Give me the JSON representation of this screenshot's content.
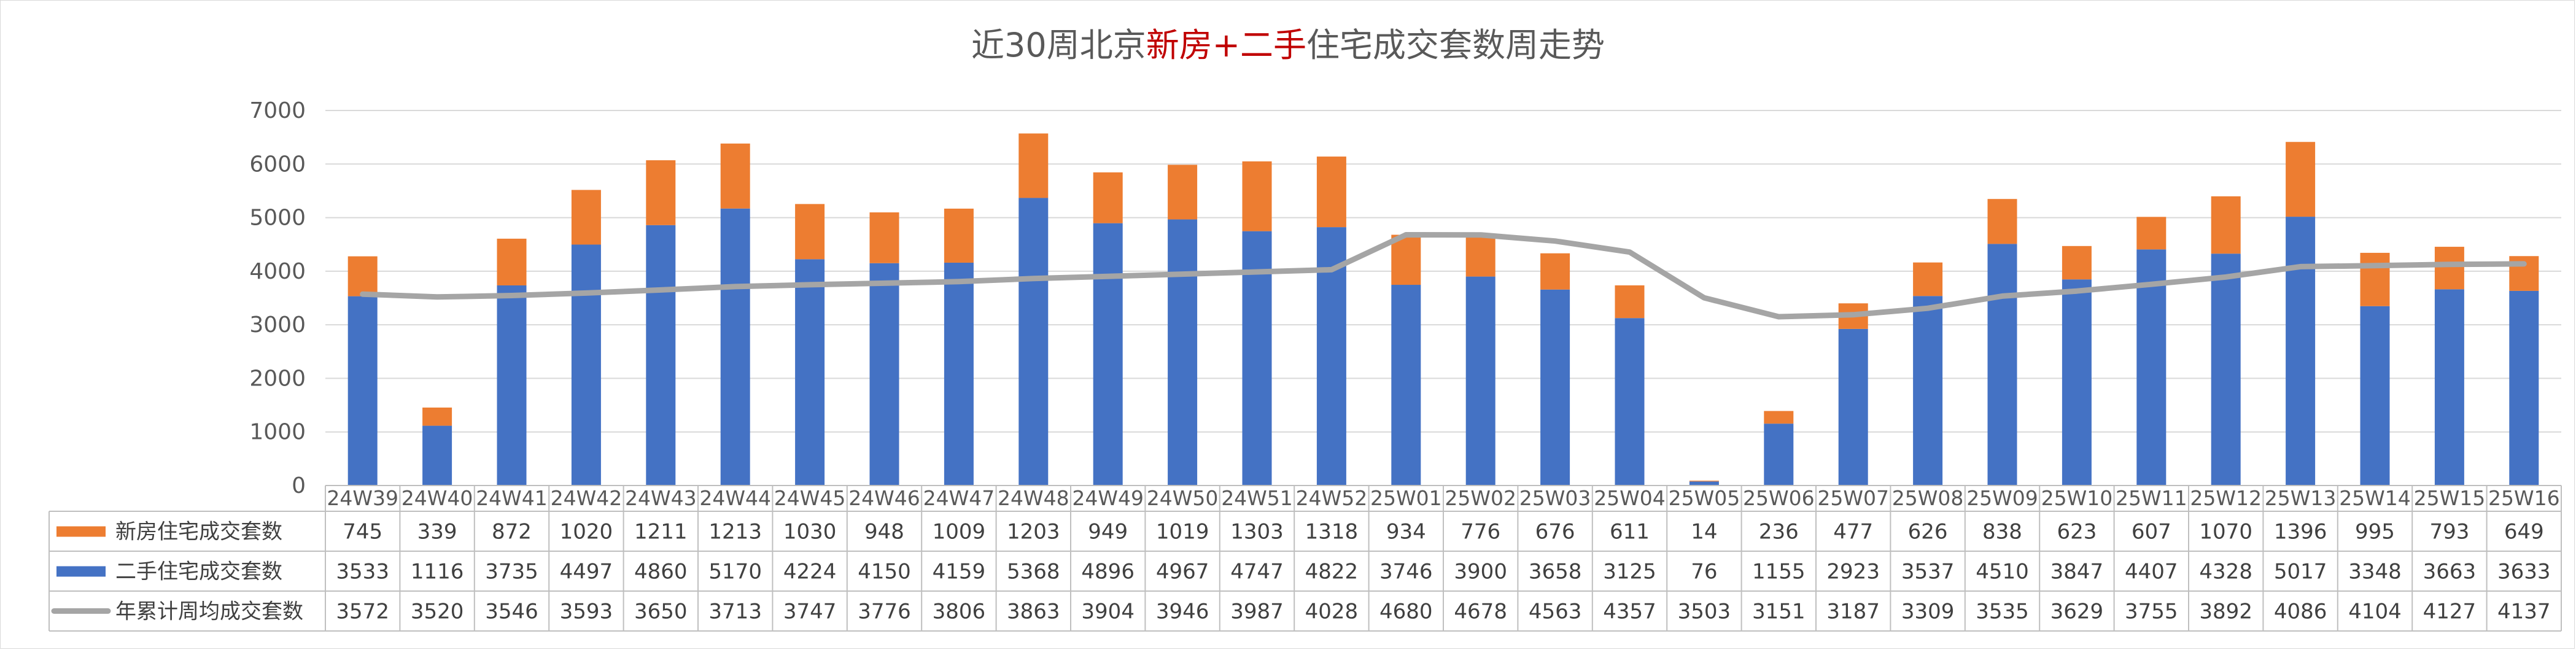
{
  "title": {
    "part1": "近30周北京",
    "part2": "新房+二手",
    "part3": "住宅成交套数周走势",
    "accent_color": "#c00000",
    "color": "#595959"
  },
  "colors": {
    "new_house": "#ed7d31",
    "second_hand": "#4472c4",
    "cumulative_avg": "#a5a5a5"
  },
  "chart_data": {
    "type": "bar",
    "stacked": true,
    "categories": [
      "24W39",
      "24W40",
      "24W41",
      "24W42",
      "24W43",
      "24W44",
      "24W45",
      "24W46",
      "24W47",
      "24W48",
      "24W49",
      "24W50",
      "24W51",
      "24W52",
      "25W01",
      "25W02",
      "25W03",
      "25W04",
      "25W05",
      "25W06",
      "25W07",
      "25W08",
      "25W09",
      "25W10",
      "25W11",
      "25W12",
      "25W13",
      "25W14",
      "25W15",
      "25W16"
    ],
    "series": [
      {
        "name": "新房住宅成交套数",
        "kind": "bar",
        "values": [
          745,
          339,
          872,
          1020,
          1211,
          1213,
          1030,
          948,
          1009,
          1203,
          949,
          1019,
          1303,
          1318,
          934,
          776,
          676,
          611,
          14,
          236,
          477,
          626,
          838,
          623,
          607,
          1070,
          1396,
          995,
          793,
          649
        ]
      },
      {
        "name": "二手住宅成交套数",
        "kind": "bar",
        "values": [
          3533,
          1116,
          3735,
          4497,
          4860,
          5170,
          4224,
          4150,
          4159,
          5368,
          4896,
          4967,
          4747,
          4822,
          3746,
          3900,
          3658,
          3125,
          76,
          1155,
          2923,
          3537,
          4510,
          3847,
          4407,
          4328,
          5017,
          3348,
          3663,
          3633
        ]
      },
      {
        "name": "年累计周均成交套数",
        "kind": "line",
        "values": [
          3572,
          3520,
          3546,
          3593,
          3650,
          3713,
          3747,
          3776,
          3806,
          3863,
          3904,
          3946,
          3987,
          4028,
          4680,
          4678,
          4563,
          4357,
          3503,
          3151,
          3187,
          3309,
          3535,
          3629,
          3755,
          3892,
          4086,
          4104,
          4127,
          4137
        ]
      }
    ],
    "ylim": [
      0,
      7000
    ],
    "yticks": [
      "0",
      "1000",
      "2000",
      "3000",
      "4000",
      "5000",
      "6000",
      "7000"
    ],
    "grid": true,
    "legend": "data-table"
  }
}
